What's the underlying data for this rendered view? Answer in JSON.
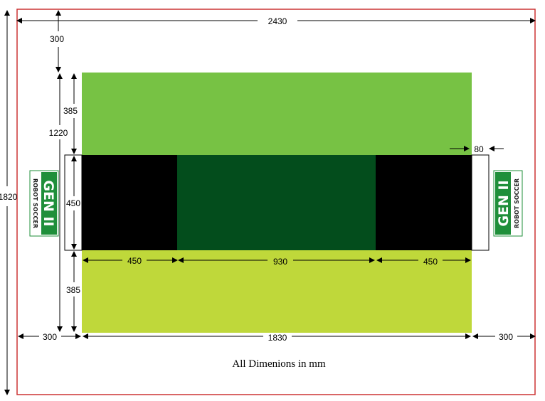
{
  "colors": {
    "border": "#cc3333",
    "upper_zone": "#77c244",
    "lower_zone": "#bfd83a",
    "penalty_area": "#000000",
    "center_zone": "#034d1c",
    "logo_green": "#1f8f3a"
  },
  "dimensions": {
    "overall_width": "2430",
    "overall_height": "1820",
    "top_margin": "300",
    "upper_zone_height": "385",
    "field_height": "1220",
    "middle_band_height": "450",
    "lower_zone_height": "385",
    "left_penalty_width": "450",
    "center_width": "930",
    "right_penalty_width": "450",
    "goal_depth": "80",
    "left_margin": "300",
    "field_width": "1830",
    "right_margin": "300"
  },
  "caption": "All Dimenions in mm",
  "logo": {
    "main": "GEN II",
    "sub": "ROBOT SOCCER"
  }
}
